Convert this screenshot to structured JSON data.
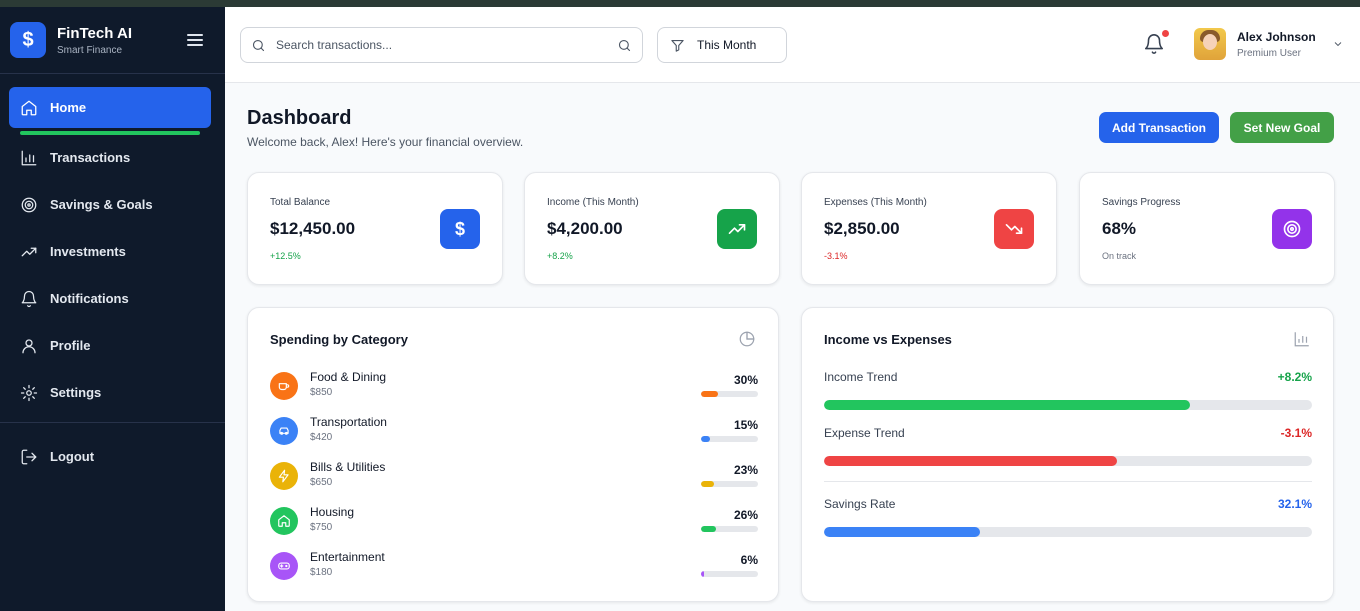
{
  "brand": {
    "name": "FinTech AI",
    "subtitle": "Smart Finance",
    "logo_icon": "dollar-icon"
  },
  "sidebar": {
    "items": [
      {
        "label": "Home",
        "icon": "home-icon",
        "active": true
      },
      {
        "label": "Transactions",
        "icon": "bar-chart-icon"
      },
      {
        "label": "Savings & Goals",
        "icon": "target-icon"
      },
      {
        "label": "Investments",
        "icon": "trending-up-icon"
      },
      {
        "label": "Notifications",
        "icon": "bell-icon"
      },
      {
        "label": "Profile",
        "icon": "user-icon"
      },
      {
        "label": "Settings",
        "icon": "gear-icon"
      }
    ],
    "logout": {
      "label": "Logout",
      "icon": "logout-icon"
    }
  },
  "header": {
    "search_placeholder": "Search transactions...",
    "filter_label": "This Month",
    "user": {
      "name": "Alex Johnson",
      "role": "Premium User"
    }
  },
  "page": {
    "title": "Dashboard",
    "subtitle": "Welcome back, Alex! Here's your financial overview.",
    "add_transaction": "Add Transaction",
    "set_new_goal": "Set New Goal"
  },
  "stats": [
    {
      "label": "Total Balance",
      "value": "$12,450.00",
      "delta": "+12.5%",
      "delta_color": "#16a34a",
      "icon": "dollar-icon",
      "icon_bg": "#2563eb"
    },
    {
      "label": "Income (This Month)",
      "value": "$4,200.00",
      "delta": "+8.2%",
      "delta_color": "#16a34a",
      "icon": "trending-up-icon",
      "icon_bg": "#16a34a"
    },
    {
      "label": "Expenses (This Month)",
      "value": "$2,850.00",
      "delta": "-3.1%",
      "delta_color": "#dc2626",
      "icon": "trending-down-icon",
      "icon_bg": "#ef4444"
    },
    {
      "label": "Savings Progress",
      "value": "68%",
      "delta": "On track",
      "delta_color": "#6b7280",
      "icon": "target-icon",
      "icon_bg": "#9333ea"
    }
  ],
  "spending": {
    "title": "Spending by Category",
    "icon": "pie-chart-icon",
    "categories": [
      {
        "name": "Food & Dining",
        "amount": "$850",
        "percent": "30%",
        "fill": 0.3,
        "color": "#f97316",
        "icon": "coffee-icon"
      },
      {
        "name": "Transportation",
        "amount": "$420",
        "percent": "15%",
        "fill": 0.15,
        "color": "#3b82f6",
        "icon": "car-icon"
      },
      {
        "name": "Bills & Utilities",
        "amount": "$650",
        "percent": "23%",
        "fill": 0.23,
        "color": "#eab308",
        "icon": "bolt-icon"
      },
      {
        "name": "Housing",
        "amount": "$750",
        "percent": "26%",
        "fill": 0.26,
        "color": "#22c55e",
        "icon": "home-icon"
      },
      {
        "name": "Entertainment",
        "amount": "$180",
        "percent": "6%",
        "fill": 0.06,
        "color": "#a855f7",
        "icon": "gamepad-icon"
      }
    ]
  },
  "income_vs_expenses": {
    "title": "Income vs Expenses",
    "icon": "bar-chart-icon",
    "trends": [
      {
        "label": "Income Trend",
        "value": "+8.2%",
        "value_color": "#16a34a",
        "fill": 0.75,
        "bar_color": "#22c55e"
      },
      {
        "label": "Expense Trend",
        "value": "-3.1%",
        "value_color": "#dc2626",
        "fill": 0.6,
        "bar_color": "#ef4444"
      },
      {
        "label": "Savings Rate",
        "value": "32.1%",
        "value_color": "#2563eb",
        "fill": 0.32,
        "bar_color": "#3b82f6"
      }
    ]
  }
}
